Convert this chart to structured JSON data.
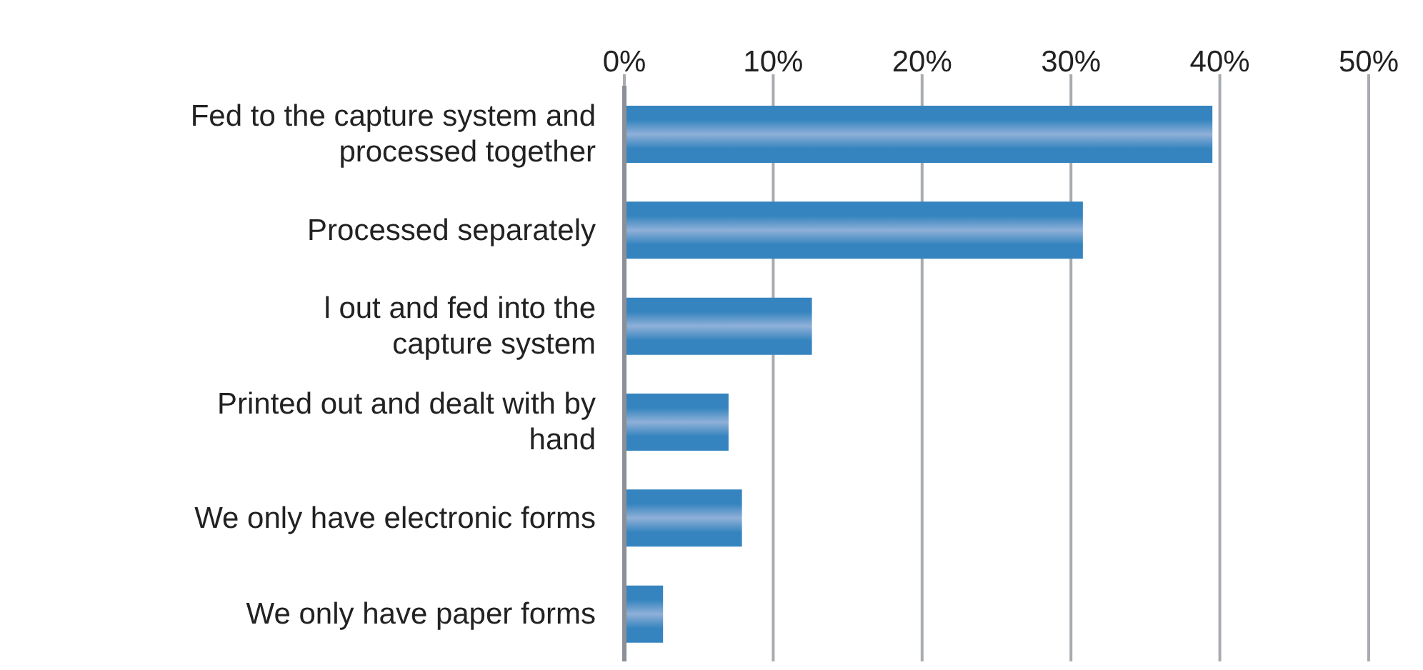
{
  "chart_data": {
    "type": "bar",
    "orientation": "horizontal",
    "categories": [
      "Fed to the capture system and processed together",
      "Processed separately",
      "l out and fed into the capture system",
      "Printed out and dealt with by hand",
      "We only have electronic forms",
      "We only have paper forms"
    ],
    "values": [
      39.5,
      30.8,
      12.6,
      7.0,
      7.9,
      2.6
    ],
    "color": "#3584bf",
    "xlim": [
      0,
      50
    ],
    "xticks": [
      {
        "value": 0,
        "label": "0%"
      },
      {
        "value": 10,
        "label": "10%"
      },
      {
        "value": 20,
        "label": "20%"
      },
      {
        "value": 30,
        "label": "30%"
      },
      {
        "value": 40,
        "label": "40%"
      },
      {
        "value": 50,
        "label": "50%"
      }
    ],
    "grid": "x"
  }
}
